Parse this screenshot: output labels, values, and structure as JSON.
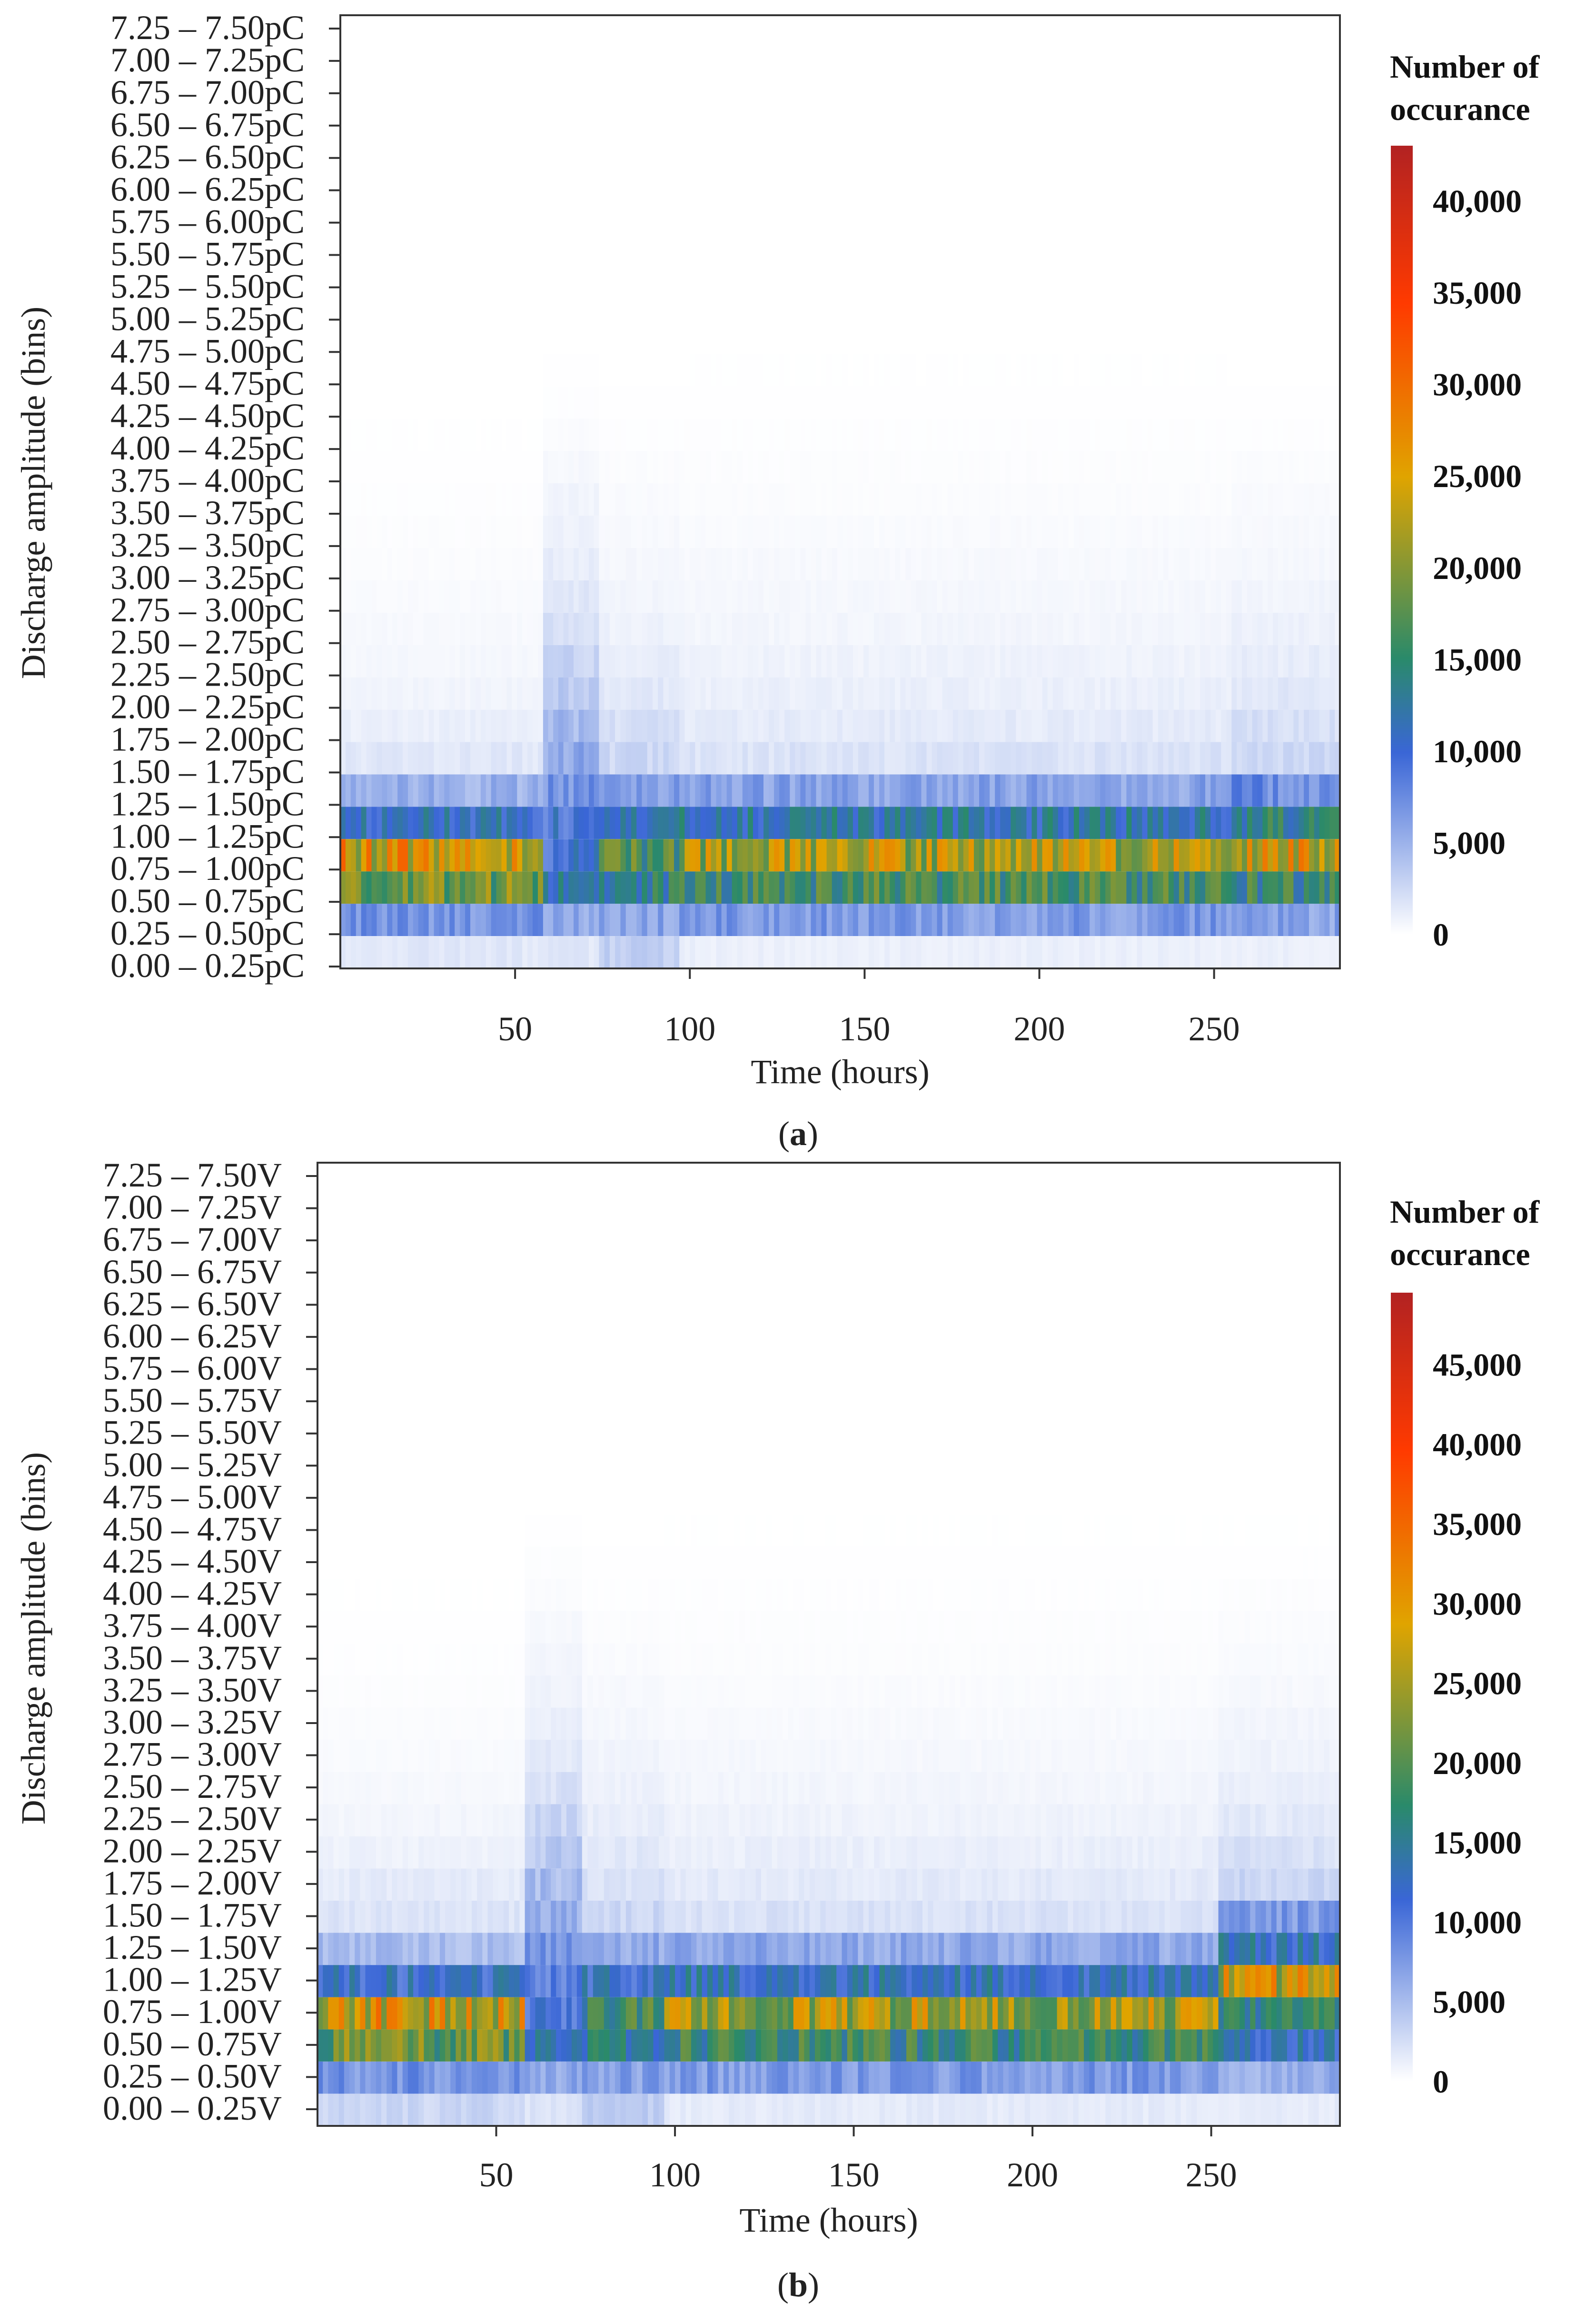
{
  "figure": {
    "panel_a_caption": "a",
    "panel_b_caption": "b"
  },
  "colorscale": {
    "stops": [
      "#ffffff",
      "#3a66d6",
      "#2a8a6a",
      "#e0a400",
      "#ff3a00",
      "#b22222"
    ],
    "stop_fractions": [
      0,
      0.23,
      0.35,
      0.58,
      0.8,
      1.0
    ]
  },
  "chart_data": [
    {
      "type": "heatmap",
      "panel": "a",
      "xlabel": "Time (hours)",
      "ylabel": "Discharge amplitude (bins)",
      "xlim": [
        0,
        286
      ],
      "x_ticks": [
        50,
        100,
        150,
        200,
        250
      ],
      "y_categories": [
        "0.00 – 0.25pC",
        "0.25 – 0.50pC",
        "0.50 – 0.75pC",
        "0.75 – 1.00pC",
        "1.00 – 1.25pC",
        "1.25 – 1.50pC",
        "1.50 – 1.75pC",
        "1.75 – 2.00pC",
        "2.00 – 2.25pC",
        "2.25 – 2.50pC",
        "2.50 – 2.75pC",
        "2.75 – 3.00pC",
        "3.00 – 3.25pC",
        "3.25 – 3.50pC",
        "3.50 – 3.75pC",
        "3.75 – 4.00pC",
        "4.00 – 4.25pC",
        "4.25 – 4.50pC",
        "4.50 – 4.75pC",
        "4.75 – 5.00pC",
        "5.00 – 5.25pC",
        "5.25 – 5.50pC",
        "5.50 – 5.75pC",
        "5.75 – 6.00pC",
        "6.00 – 6.25pC",
        "6.25 – 6.50pC",
        "6.50 – 6.75pC",
        "6.75 – 7.00pC",
        "7.00 – 7.25pC",
        "7.25 – 7.50pC"
      ],
      "colorbar": {
        "title_line1": "Number of",
        "title_line2": "occurance",
        "ticks": [
          0,
          5000,
          10000,
          15000,
          20000,
          25000,
          30000,
          35000,
          40000
        ],
        "tick_labels": [
          "0",
          "5,000",
          "10,000",
          "15,000",
          "20,000",
          "25,000",
          "30,000",
          "35,000",
          "40,000"
        ],
        "max": 43000
      },
      "time_segments": [
        {
          "x0": 0,
          "x1": 58,
          "values": [
            1500,
            7000,
            19000,
            25000,
            11000,
            5000,
            1500,
            1000,
            700,
            500,
            400,
            300,
            200,
            150,
            100,
            50,
            30,
            20,
            10,
            5,
            0,
            0,
            0,
            0,
            0,
            0,
            0,
            0,
            0,
            0
          ]
        },
        {
          "x0": 58,
          "x1": 74,
          "values": [
            1500,
            5500,
            12000,
            10000,
            9500,
            7000,
            5500,
            4500,
            3500,
            2800,
            2000,
            1500,
            1200,
            900,
            700,
            450,
            250,
            100,
            50,
            20,
            0,
            0,
            0,
            0,
            0,
            0,
            0,
            0,
            0,
            0
          ]
        },
        {
          "x0": 74,
          "x1": 97,
          "values": [
            3000,
            6000,
            14000,
            17000,
            11000,
            6000,
            2500,
            2000,
            1500,
            1200,
            900,
            700,
            500,
            400,
            300,
            200,
            100,
            50,
            20,
            10,
            0,
            0,
            0,
            0,
            0,
            0,
            0,
            0,
            0,
            0
          ]
        },
        {
          "x0": 97,
          "x1": 255,
          "values": [
            1000,
            6500,
            16000,
            22000,
            12000,
            6000,
            1800,
            1300,
            1000,
            800,
            600,
            500,
            400,
            300,
            200,
            150,
            100,
            60,
            30,
            15,
            5,
            0,
            0,
            0,
            0,
            0,
            0,
            0,
            0,
            0
          ]
        },
        {
          "x0": 255,
          "x1": 286,
          "values": [
            1000,
            6000,
            15000,
            24000,
            14000,
            7500,
            2500,
            2000,
            1500,
            1200,
            900,
            700,
            500,
            400,
            300,
            200,
            100,
            50,
            20,
            10,
            0,
            0,
            0,
            0,
            0,
            0,
            0,
            0,
            0,
            0
          ]
        }
      ]
    },
    {
      "type": "heatmap",
      "panel": "b",
      "xlabel": "Time (hours)",
      "ylabel": "Discharge amplitude (bins)",
      "xlim": [
        0,
        286
      ],
      "x_ticks": [
        50,
        100,
        150,
        200,
        250
      ],
      "y_categories": [
        "0.00 – 0.25V",
        "0.25 – 0.50V",
        "0.50 – 0.75V",
        "0.75 – 1.00V",
        "1.00 – 1.25V",
        "1.25 – 1.50V",
        "1.50 – 1.75V",
        "1.75 – 2.00V",
        "2.00 – 2.25V",
        "2.25 – 2.50V",
        "2.50 – 2.75V",
        "2.75 – 3.00V",
        "3.00 – 3.25V",
        "3.25 – 3.50V",
        "3.50 – 3.75V",
        "3.75 – 4.00V",
        "4.00 – 4.25V",
        "4.25 – 4.50V",
        "4.50 – 4.75V",
        "4.75 – 5.00V",
        "5.00 – 5.25V",
        "5.25 – 5.50V",
        "5.50 – 5.75V",
        "5.75 – 6.00V",
        "6.00 – 6.25V",
        "6.25 – 6.50V",
        "6.50 – 6.75V",
        "6.75 – 7.00V",
        "7.00 – 7.25V",
        "7.25 – 7.50V"
      ],
      "colorbar": {
        "title_line1": "Number of",
        "title_line2": "occurance",
        "ticks": [
          0,
          5000,
          10000,
          15000,
          20000,
          25000,
          30000,
          35000,
          40000,
          45000
        ],
        "tick_labels": [
          "0",
          "5,000",
          "10,000",
          "15,000",
          "20,000",
          "25,000",
          "30,000",
          "35,000",
          "40,000",
          "45,000"
        ],
        "max": 49500
      },
      "time_segments": [
        {
          "x0": 0,
          "x1": 58,
          "values": [
            3000,
            8000,
            21000,
            28000,
            12000,
            5000,
            2000,
            1500,
            1000,
            700,
            500,
            350,
            250,
            150,
            100,
            50,
            30,
            20,
            10,
            0,
            0,
            0,
            0,
            0,
            0,
            0,
            0,
            0,
            0,
            0
          ]
        },
        {
          "x0": 58,
          "x1": 74,
          "values": [
            2000,
            6500,
            13000,
            11000,
            9000,
            7500,
            6000,
            5000,
            4000,
            3000,
            2200,
            1600,
            1200,
            900,
            700,
            500,
            300,
            150,
            60,
            20,
            0,
            0,
            0,
            0,
            0,
            0,
            0,
            0,
            0,
            0
          ]
        },
        {
          "x0": 74,
          "x1": 97,
          "values": [
            4000,
            7000,
            15000,
            18000,
            12000,
            6500,
            3000,
            2200,
            1700,
            1300,
            1000,
            800,
            600,
            450,
            300,
            200,
            100,
            50,
            20,
            10,
            0,
            0,
            0,
            0,
            0,
            0,
            0,
            0,
            0,
            0
          ]
        },
        {
          "x0": 97,
          "x1": 252,
          "values": [
            1500,
            7500,
            17500,
            25000,
            13000,
            6500,
            2200,
            1600,
            1200,
            900,
            700,
            550,
            400,
            300,
            200,
            150,
            100,
            60,
            30,
            15,
            5,
            0,
            0,
            0,
            0,
            0,
            0,
            0,
            0,
            0
          ]
        },
        {
          "x0": 252,
          "x1": 286,
          "values": [
            1500,
            6000,
            13000,
            17000,
            27000,
            13000,
            7500,
            3000,
            2200,
            1600,
            1200,
            900,
            700,
            500,
            350,
            250,
            150,
            70,
            30,
            10,
            0,
            0,
            0,
            0,
            0,
            0,
            0,
            0,
            0,
            0
          ]
        }
      ]
    }
  ]
}
